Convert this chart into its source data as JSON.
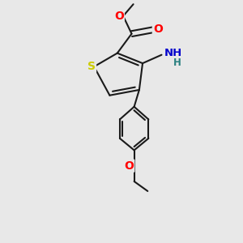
{
  "background_color": "#e8e8e8",
  "bond_color": "#1a1a1a",
  "bond_lw": 1.5,
  "S_color": "#cccc00",
  "O_color": "#ff0000",
  "N_color": "#0000cc",
  "H_color": "#2a8080",
  "figsize": [
    3.0,
    3.0
  ],
  "dpi": 100,
  "xlim": [
    -1.8,
    1.8
  ],
  "ylim": [
    -3.8,
    1.8
  ]
}
